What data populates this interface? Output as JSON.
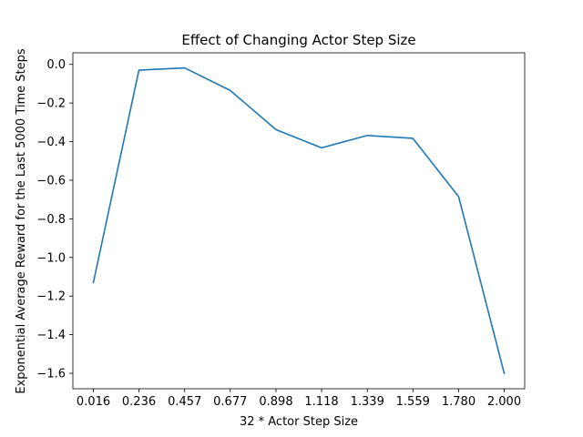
{
  "chart_data": {
    "type": "line",
    "title": "Effect of Changing Actor Step Size",
    "xlabel": "32 * Actor Step Size",
    "ylabel": "Exponential Average Reward for the Last 5000 Time Steps",
    "x_tick_labels": [
      "0.016",
      "0.236",
      "0.457",
      "0.677",
      "0.898",
      "1.118",
      "1.339",
      "1.559",
      "1.780",
      "2.000"
    ],
    "y_tick_labels": [
      "0.0",
      "−0.2",
      "−0.4",
      "−0.6",
      "−0.8",
      "−1.0",
      "−1.2",
      "−1.4",
      "−1.6"
    ],
    "x_tick_values": [
      0.016,
      0.236,
      0.457,
      0.677,
      0.898,
      1.118,
      1.339,
      1.559,
      1.78,
      2.0
    ],
    "y_tick_values": [
      0.0,
      -0.2,
      -0.4,
      -0.6,
      -0.8,
      -1.0,
      -1.2,
      -1.4,
      -1.6
    ],
    "series": [
      {
        "x": [
          0.016,
          0.236,
          0.457,
          0.677,
          0.898,
          1.118,
          1.339,
          1.559,
          1.78,
          2.0
        ],
        "values": [
          -1.13,
          -0.03,
          -0.018,
          -0.135,
          -0.338,
          -0.432,
          -0.368,
          -0.383,
          -0.685,
          -1.6
        ],
        "color": "#1f77b4"
      }
    ],
    "xlim": [
      -0.083,
      2.099
    ],
    "ylim": [
      -1.68,
      0.06
    ],
    "grid": false
  }
}
